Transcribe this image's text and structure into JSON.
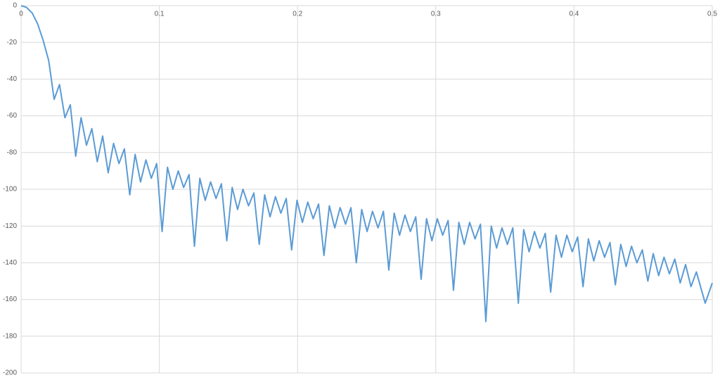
{
  "chart_data": {
    "type": "line",
    "x": [
      0,
      0.004,
      0.008,
      0.012,
      0.016,
      0.02,
      0.0239,
      0.0278,
      0.0317,
      0.0356,
      0.0395,
      0.0434,
      0.0473,
      0.0512,
      0.0551,
      0.059,
      0.063,
      0.0669,
      0.0708,
      0.0747,
      0.0786,
      0.0825,
      0.0864,
      0.0903,
      0.0942,
      0.0981,
      0.102,
      0.1059,
      0.1098,
      0.1137,
      0.1176,
      0.1215,
      0.1254,
      0.1293,
      0.1332,
      0.1371,
      0.141,
      0.1449,
      0.1488,
      0.1527,
      0.1566,
      0.1605,
      0.1645,
      0.1684,
      0.1723,
      0.1762,
      0.1801,
      0.184,
      0.1879,
      0.1918,
      0.1957,
      0.1996,
      0.2035,
      0.2074,
      0.2113,
      0.2152,
      0.2191,
      0.223,
      0.2269,
      0.2308,
      0.2347,
      0.2386,
      0.2425,
      0.2464,
      0.2503,
      0.2542,
      0.2582,
      0.2621,
      0.266,
      0.2699,
      0.2738,
      0.2777,
      0.2816,
      0.2855,
      0.2894,
      0.2933,
      0.2972,
      0.3011,
      0.305,
      0.3089,
      0.3128,
      0.3167,
      0.3206,
      0.3245,
      0.3284,
      0.3323,
      0.3362,
      0.3401,
      0.344,
      0.3479,
      0.3518,
      0.3557,
      0.3597,
      0.3636,
      0.3675,
      0.3714,
      0.3753,
      0.3792,
      0.3831,
      0.387,
      0.3909,
      0.3948,
      0.3987,
      0.4026,
      0.4065,
      0.4104,
      0.4143,
      0.4182,
      0.4221,
      0.426,
      0.4299,
      0.4338,
      0.4377,
      0.4416,
      0.4455,
      0.4494,
      0.4534,
      0.4573,
      0.4612,
      0.4651,
      0.469,
      0.4729,
      0.4768,
      0.4807,
      0.4846,
      0.4885,
      0.4949,
      0.5
    ],
    "series": [
      {
        "color": "#5b9bd5",
        "values": [
          0,
          -1,
          -4,
          -10,
          -19,
          -30,
          -51,
          -43,
          -61,
          -54,
          -82,
          -61,
          -76,
          -67,
          -85,
          -71,
          -91,
          -75,
          -86,
          -78,
          -103,
          -81,
          -96,
          -84,
          -94,
          -86,
          -123,
          -88,
          -100,
          -90,
          -99,
          -92,
          -131,
          -94,
          -106,
          -96,
          -105,
          -97,
          -128,
          -99,
          -111,
          -100,
          -109,
          -102,
          -130,
          -103,
          -115,
          -104,
          -113,
          -105,
          -133,
          -106,
          -118,
          -107,
          -116,
          -108,
          -136,
          -109,
          -121,
          -110,
          -119,
          -110,
          -140,
          -111,
          -123,
          -112,
          -121,
          -112,
          -144,
          -113,
          -125,
          -114,
          -123,
          -115,
          -149,
          -116,
          -128,
          -116,
          -125,
          -117,
          -155,
          -118,
          -130,
          -118,
          -127,
          -119,
          -172,
          -120,
          -132,
          -121,
          -130,
          -121,
          -162,
          -122,
          -134,
          -123,
          -132,
          -124,
          -156,
          -125,
          -137,
          -125,
          -134,
          -126,
          -153,
          -127,
          -139,
          -128,
          -137,
          -129,
          -152,
          -130,
          -142,
          -131,
          -140,
          -133,
          -150,
          -135,
          -147,
          -137,
          -146,
          -138,
          -151,
          -141,
          -153,
          -145,
          -162,
          -151
        ]
      }
    ],
    "xlim": [
      0,
      0.5
    ],
    "xticks": [
      0,
      0.1,
      0.2,
      0.3,
      0.4,
      0.5
    ],
    "ylim": [
      -200,
      0
    ],
    "yticks": [
      0,
      -20,
      -40,
      -60,
      -80,
      -100,
      -120,
      -140,
      -160,
      -180,
      -200
    ],
    "grid": true
  }
}
